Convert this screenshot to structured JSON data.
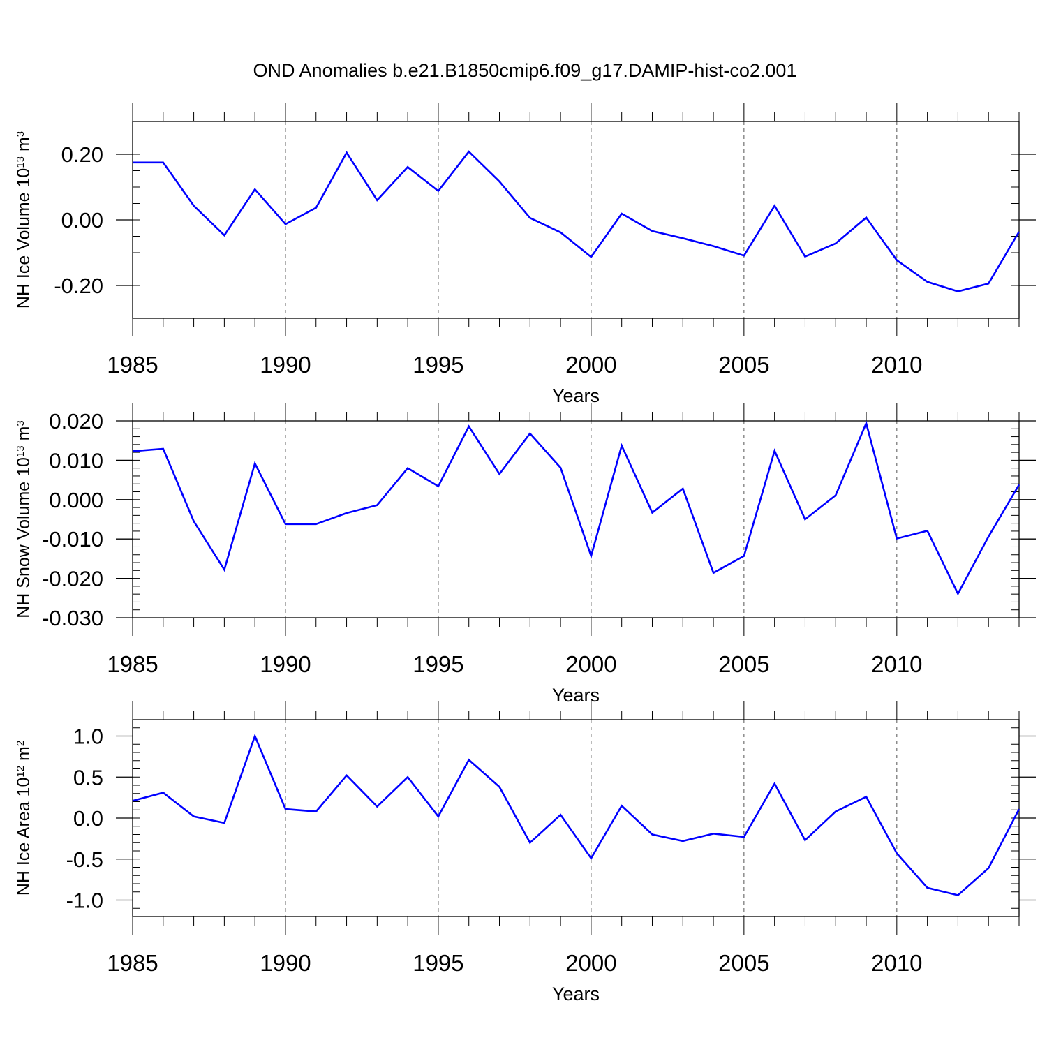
{
  "title": "OND Anomalies b.e21.B1850cmip6.f09_g17.DAMIP-hist-co2.001",
  "colors": {
    "line": "#0000ff",
    "axis": "#000000",
    "grid": "#555555"
  },
  "chart_data": [
    {
      "type": "line",
      "ylabel": {
        "main": "NH Ice Volume 10",
        "sup": "13",
        "unit": " m",
        "unit_sup": "3"
      },
      "xlabel": "Years",
      "xlim": [
        1985,
        2014
      ],
      "ylim": [
        -0.3,
        0.3
      ],
      "y_major_ticks": [
        0.2,
        0.0,
        -0.2
      ],
      "y_tick_labels": [
        "0.20",
        "0.00",
        "-0.20"
      ],
      "y_minor_step": 0.05,
      "x_major_ticks": [
        1985,
        1990,
        1995,
        2000,
        2005,
        2010
      ],
      "x_tick_labels": [
        "1985",
        "1990",
        "1995",
        "2000",
        "2005",
        "2010"
      ],
      "x_grid": [
        1990,
        1995,
        2000,
        2005,
        2010
      ],
      "series": [
        {
          "name": "NH Ice Volume",
          "x": [
            1985,
            1986,
            1987,
            1988,
            1989,
            1990,
            1991,
            1992,
            1993,
            1994,
            1995,
            1996,
            1997,
            1998,
            1999,
            2000,
            2001,
            2002,
            2003,
            2004,
            2005,
            2006,
            2007,
            2008,
            2009,
            2010,
            2011,
            2012,
            2013,
            2014
          ],
          "values": [
            0.175,
            0.175,
            0.043,
            -0.047,
            0.093,
            -0.013,
            0.037,
            0.205,
            0.06,
            0.161,
            0.088,
            0.208,
            0.117,
            0.006,
            -0.038,
            -0.113,
            0.019,
            -0.034,
            -0.056,
            -0.08,
            -0.109,
            0.043,
            -0.112,
            -0.072,
            0.007,
            -0.123,
            -0.189,
            -0.218,
            -0.194,
            -0.036
          ]
        }
      ]
    },
    {
      "type": "line",
      "ylabel": {
        "main": "NH Snow Volume 10",
        "sup": "13",
        "unit": " m",
        "unit_sup": "3"
      },
      "xlabel": "Years",
      "xlim": [
        1985,
        2014
      ],
      "ylim": [
        -0.03,
        0.02
      ],
      "y_major_ticks": [
        0.02,
        0.01,
        0.0,
        -0.01,
        -0.02,
        -0.03
      ],
      "y_tick_labels": [
        "0.020",
        "0.010",
        "0.000",
        "-0.010",
        "-0.020",
        "-0.030"
      ],
      "y_minor_step": 0.002,
      "x_major_ticks": [
        1985,
        1990,
        1995,
        2000,
        2005,
        2010
      ],
      "x_tick_labels": [
        "1985",
        "1990",
        "1995",
        "2000",
        "2005",
        "2010"
      ],
      "x_grid": [
        1990,
        1995,
        2000,
        2005,
        2010
      ],
      "series": [
        {
          "name": "NH Snow Volume",
          "x": [
            1985,
            1986,
            1987,
            1988,
            1989,
            1990,
            1991,
            1992,
            1993,
            1994,
            1995,
            1996,
            1997,
            1998,
            1999,
            2000,
            2001,
            2002,
            2003,
            2004,
            2005,
            2006,
            2007,
            2008,
            2009,
            2010,
            2011,
            2012,
            2013,
            2014
          ],
          "values": [
            0.0123,
            0.0129,
            -0.0055,
            -0.0178,
            0.0092,
            -0.0062,
            -0.0062,
            -0.0034,
            -0.0014,
            0.008,
            0.0034,
            0.0186,
            0.0065,
            0.0168,
            0.0081,
            -0.0143,
            0.0137,
            -0.0033,
            0.0028,
            -0.0186,
            -0.0143,
            0.0124,
            -0.005,
            0.0011,
            0.0194,
            -0.0099,
            -0.0079,
            -0.0239,
            -0.0094,
            0.0038
          ]
        }
      ]
    },
    {
      "type": "line",
      "ylabel": {
        "main": "NH Ice Area 10",
        "sup": "12",
        "unit": " m",
        "unit_sup": "2"
      },
      "xlabel": "Years",
      "xlim": [
        1985,
        2014
      ],
      "ylim": [
        -1.2,
        1.2
      ],
      "y_major_ticks": [
        1.0,
        0.5,
        0.0,
        -0.5,
        -1.0
      ],
      "y_tick_labels": [
        "1.0",
        "0.5",
        "0.0",
        "-0.5",
        "-1.0"
      ],
      "y_minor_step": 0.1,
      "x_major_ticks": [
        1985,
        1990,
        1995,
        2000,
        2005,
        2010
      ],
      "x_tick_labels": [
        "1985",
        "1990",
        "1995",
        "2000",
        "2005",
        "2010"
      ],
      "x_grid": [
        1990,
        1995,
        2000,
        2005,
        2010
      ],
      "series": [
        {
          "name": "NH Ice Area",
          "x": [
            1985,
            1986,
            1987,
            1988,
            1989,
            1990,
            1991,
            1992,
            1993,
            1994,
            1995,
            1996,
            1997,
            1998,
            1999,
            2000,
            2001,
            2002,
            2003,
            2004,
            2005,
            2006,
            2007,
            2008,
            2009,
            2010,
            2011,
            2012,
            2013,
            2014
          ],
          "values": [
            0.21,
            0.31,
            0.02,
            -0.06,
            1.0,
            0.11,
            0.08,
            0.52,
            0.14,
            0.5,
            0.02,
            0.71,
            0.38,
            -0.3,
            0.04,
            -0.49,
            0.15,
            -0.2,
            -0.28,
            -0.19,
            -0.23,
            0.42,
            -0.27,
            0.08,
            0.26,
            -0.43,
            -0.85,
            -0.94,
            -0.61,
            0.11
          ]
        }
      ]
    }
  ]
}
